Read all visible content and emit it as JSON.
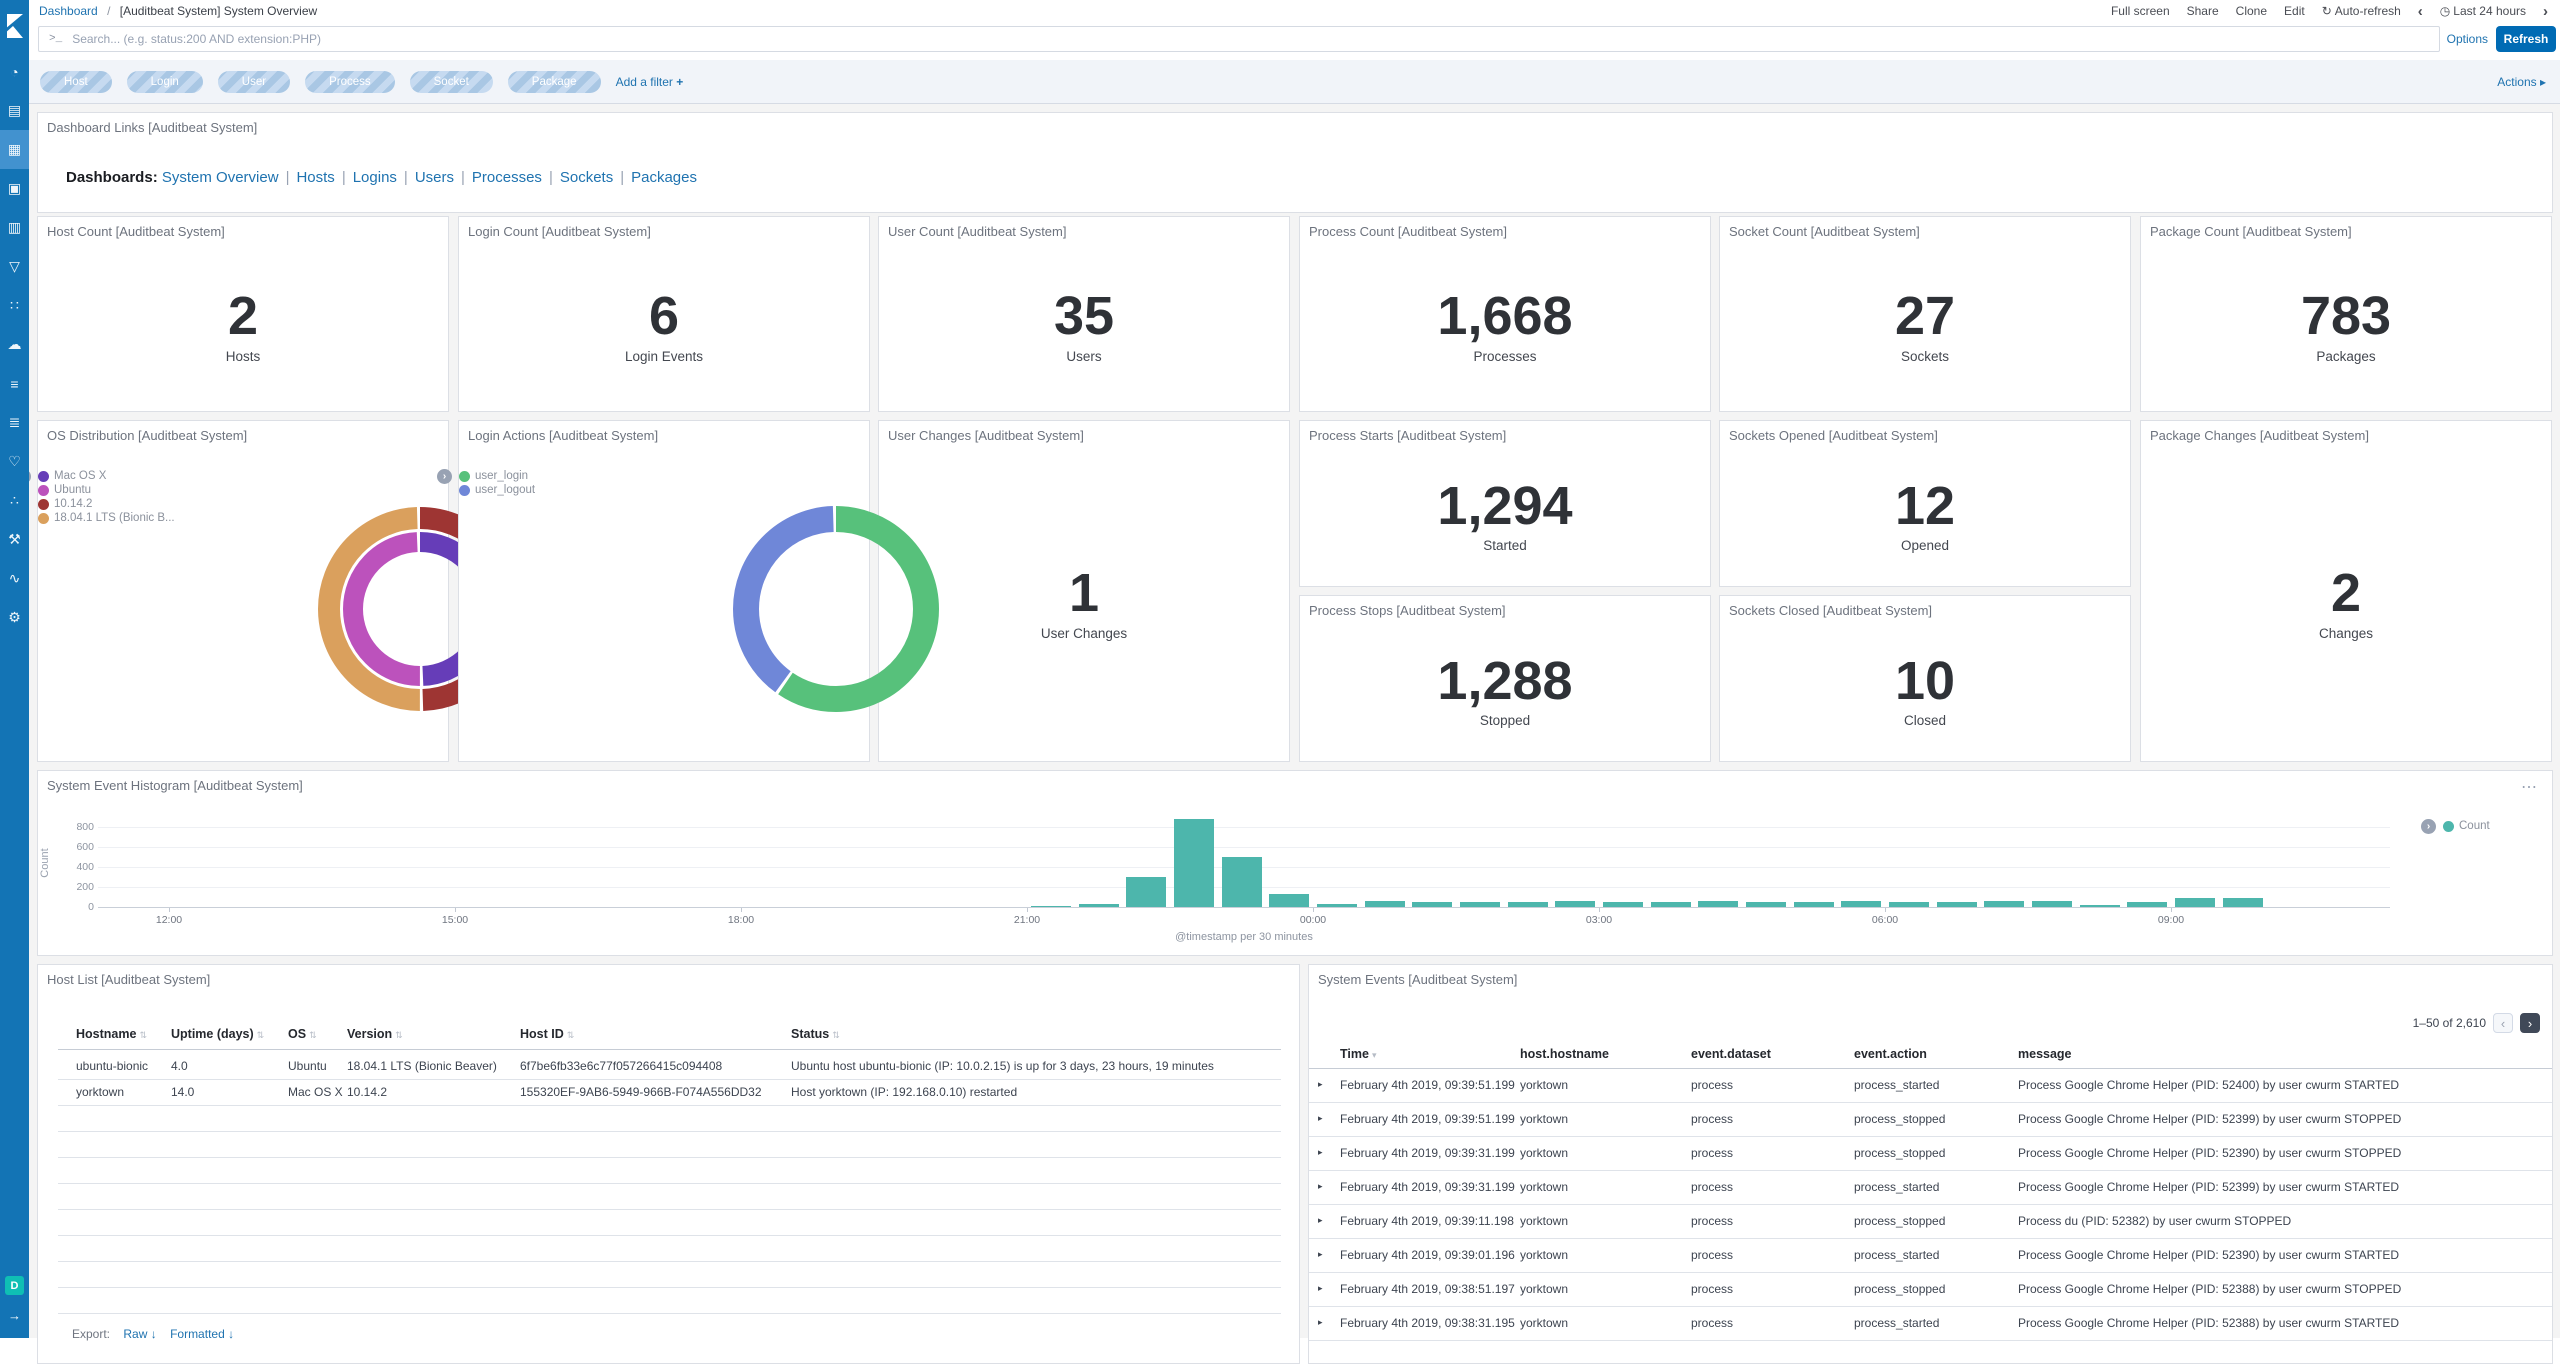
{
  "colors": {
    "accent": "#006bb4",
    "sidebar": "#1374b5",
    "bar_teal": "#4db6ac",
    "link_blue": "#1f73b0"
  },
  "app": {
    "sidebar": {
      "items": [
        {
          "name": "discover",
          "glyph": "◔"
        },
        {
          "name": "visualize",
          "glyph": "▤"
        },
        {
          "name": "dashboard",
          "glyph": "▦",
          "selected": true
        },
        {
          "name": "canvas",
          "glyph": "▣"
        },
        {
          "name": "reporting",
          "glyph": "▥"
        },
        {
          "name": "maps",
          "glyph": "▽"
        },
        {
          "name": "machine-learning",
          "glyph": "∷"
        },
        {
          "name": "infrastructure",
          "glyph": "☁"
        },
        {
          "name": "logs",
          "glyph": "≡"
        },
        {
          "name": "apm",
          "glyph": "≣"
        },
        {
          "name": "uptime",
          "glyph": "♡"
        },
        {
          "name": "graph",
          "glyph": "∴"
        },
        {
          "name": "dev-tools",
          "glyph": "⚒"
        },
        {
          "name": "monitoring",
          "glyph": "∿"
        },
        {
          "name": "management",
          "glyph": "⚙"
        }
      ],
      "docs_badge": "D",
      "collapse_glyph": "→"
    },
    "header": {
      "breadcrumb": {
        "root": "Dashboard",
        "separator": "/",
        "current": "[Auditbeat System] System Overview"
      },
      "menu": {
        "full_screen": "Full screen",
        "share": "Share",
        "clone": "Clone",
        "edit": "Edit",
        "auto_refresh": "Auto-refresh",
        "time_range": "Last 24 hours"
      }
    },
    "icons": {
      "auto_refresh": "↻",
      "clock": "◷",
      "prev": "‹",
      "next": "›",
      "prompt": ">_",
      "plus": "+",
      "actions_caret": "▸",
      "row_expand": "▸",
      "sort": "⇅",
      "sort_desc": "▾",
      "panel_options": "⋯",
      "legend_toggle": "›",
      "export_arrow": "↓"
    },
    "search": {
      "placeholder": "Search... (e.g. status:200 AND extension:PHP)",
      "options": "Options",
      "refresh": "Refresh"
    },
    "filter_bar": {
      "pills": [
        "Host",
        "Login",
        "User",
        "Process",
        "Socket",
        "Package"
      ],
      "add_filter": "Add a filter",
      "actions": "Actions"
    }
  },
  "panels": {
    "dashboard_links": {
      "title": "Dashboard Links [Auditbeat System]",
      "prefix": "Dashboards:",
      "links": [
        "System Overview",
        "Hosts",
        "Logins",
        "Users",
        "Processes",
        "Sockets",
        "Packages"
      ]
    },
    "metrics_row": [
      {
        "title": "Host Count [Auditbeat System]",
        "value": "2",
        "label": "Hosts"
      },
      {
        "title": "Login Count [Auditbeat System]",
        "value": "6",
        "label": "Login Events"
      },
      {
        "title": "User Count [Auditbeat System]",
        "value": "35",
        "label": "Users"
      },
      {
        "title": "Process Count [Auditbeat System]",
        "value": "1,668",
        "label": "Processes"
      },
      {
        "title": "Socket Count [Auditbeat System]",
        "value": "27",
        "label": "Sockets"
      },
      {
        "title": "Package Count [Auditbeat System]",
        "value": "783",
        "label": "Packages"
      }
    ],
    "mid_metrics": [
      {
        "title": "Process Starts [Auditbeat System]",
        "value": "1,294",
        "label": "Started"
      },
      {
        "title": "Sockets Opened [Auditbeat System]",
        "value": "12",
        "label": "Opened"
      },
      {
        "title": "Process Stops [Auditbeat System]",
        "value": "1,288",
        "label": "Stopped"
      },
      {
        "title": "Sockets Closed [Auditbeat System]",
        "value": "10",
        "label": "Closed"
      }
    ],
    "user_changes": {
      "title": "User Changes [Auditbeat System]",
      "value": "1",
      "label": "User Changes"
    },
    "package_changes": {
      "title": "Package Changes [Auditbeat System]",
      "value": "2",
      "label": "Changes"
    },
    "histogram": {
      "title": "System Event Histogram [Auditbeat System]"
    },
    "host_list": {
      "title": "Host List [Auditbeat System]",
      "columns": [
        "Hostname",
        "Uptime (days)",
        "OS",
        "Version",
        "Host ID",
        "Status"
      ],
      "rows": [
        [
          "ubuntu-bionic",
          "4.0",
          "Ubuntu",
          "18.04.1 LTS (Bionic Beaver)",
          "6f7be6fb33e6c77f057266415c094408",
          "Ubuntu host ubuntu-bionic (IP: 10.0.2.15) is up for 3 days, 23 hours, 19 minutes"
        ],
        [
          "yorktown",
          "14.0",
          "Mac OS X",
          "10.14.2",
          "155320EF-9AB6-5949-966B-F074A556DD32",
          "Host yorktown (IP: 192.168.0.10) restarted"
        ]
      ],
      "export_label": "Export:",
      "export_links": [
        "Raw",
        "Formatted"
      ]
    },
    "system_events": {
      "title": "System Events [Auditbeat System]",
      "pagination": "1–50 of 2,610",
      "columns": [
        "Time",
        "host.hostname",
        "event.dataset",
        "event.action",
        "message"
      ],
      "rows": [
        [
          "February 4th 2019, 09:39:51.199",
          "yorktown",
          "process",
          "process_started",
          "Process Google Chrome Helper (PID: 52400) by user cwurm STARTED"
        ],
        [
          "February 4th 2019, 09:39:51.199",
          "yorktown",
          "process",
          "process_stopped",
          "Process Google Chrome Helper (PID: 52399) by user cwurm STOPPED"
        ],
        [
          "February 4th 2019, 09:39:31.199",
          "yorktown",
          "process",
          "process_stopped",
          "Process Google Chrome Helper (PID: 52390) by user cwurm STOPPED"
        ],
        [
          "February 4th 2019, 09:39:31.199",
          "yorktown",
          "process",
          "process_started",
          "Process Google Chrome Helper (PID: 52399) by user cwurm STARTED"
        ],
        [
          "February 4th 2019, 09:39:11.198",
          "yorktown",
          "process",
          "process_stopped",
          "Process du (PID: 52382) by user cwurm STOPPED"
        ],
        [
          "February 4th 2019, 09:39:01.196",
          "yorktown",
          "process",
          "process_started",
          "Process Google Chrome Helper (PID: 52390) by user cwurm STARTED"
        ],
        [
          "February 4th 2019, 09:38:51.197",
          "yorktown",
          "process",
          "process_stopped",
          "Process Google Chrome Helper (PID: 52388) by user cwurm STOPPED"
        ],
        [
          "February 4th 2019, 09:38:31.195",
          "yorktown",
          "process",
          "process_started",
          "Process Google Chrome Helper (PID: 52388) by user cwurm STARTED"
        ]
      ]
    }
  },
  "chart_data": [
    {
      "id": "os-distribution",
      "type": "pie",
      "donut": true,
      "title": "OS Distribution [Auditbeat System]",
      "rings": [
        {
          "slices": [
            {
              "label": "Mac OS X",
              "value": 50,
              "color": "#663db8"
            },
            {
              "label": "Ubuntu",
              "value": 50,
              "color": "#bc52bc"
            }
          ]
        },
        {
          "slices": [
            {
              "label": "10.14.2",
              "value": 50,
              "color": "#9e3533"
            },
            {
              "label": "18.04.1 LTS (Bionic B...",
              "value": 50,
              "color": "#daa05d"
            }
          ]
        }
      ],
      "legend": [
        {
          "label": "Mac OS X",
          "color": "#663db8"
        },
        {
          "label": "Ubuntu",
          "color": "#bc52bc"
        },
        {
          "label": "10.14.2",
          "color": "#9e3533"
        },
        {
          "label": "18.04.1 LTS (Bionic B...",
          "color": "#daa05d"
        }
      ],
      "legend_position": "right"
    },
    {
      "id": "login-actions",
      "type": "pie",
      "donut": true,
      "title": "Login Actions [Auditbeat System]",
      "rings": [
        {
          "slices": [
            {
              "label": "user_login",
              "value": 60,
              "color": "#57c17b"
            },
            {
              "label": "user_logout",
              "value": 40,
              "color": "#6f87d8"
            }
          ]
        }
      ],
      "legend": [
        {
          "label": "user_login",
          "color": "#57c17b"
        },
        {
          "label": "user_logout",
          "color": "#6f87d8"
        }
      ],
      "legend_position": "right"
    },
    {
      "id": "system-event-histogram",
      "type": "bar",
      "title": "System Event Histogram [Auditbeat System]",
      "xlabel": "@timestamp per 30 minutes",
      "ylabel": "Count",
      "ylim": [
        0,
        900
      ],
      "yticks": [
        0,
        200,
        400,
        600,
        800
      ],
      "xticks": [
        "12:00",
        "15:00",
        "18:00",
        "21:00",
        "00:00",
        "03:00",
        "06:00",
        "09:00"
      ],
      "grid": true,
      "legend": [
        {
          "label": "Count",
          "color": "#4db6ac"
        }
      ],
      "legend_position": "top-right",
      "bar_color": "#4db6ac",
      "x": [
        "21:00",
        "21:30",
        "22:00",
        "22:30",
        "23:00",
        "23:30",
        "00:00",
        "00:30",
        "01:00",
        "01:30",
        "02:00",
        "02:30",
        "03:00",
        "03:30",
        "04:00",
        "04:30",
        "05:00",
        "05:30",
        "06:00",
        "06:30",
        "07:00",
        "07:30",
        "08:00",
        "08:30",
        "09:00",
        "09:30"
      ],
      "values": [
        10,
        30,
        300,
        880,
        500,
        130,
        30,
        60,
        55,
        50,
        55,
        60,
        50,
        55,
        60,
        55,
        55,
        60,
        50,
        55,
        60,
        60,
        25,
        50,
        95,
        90
      ]
    }
  ]
}
